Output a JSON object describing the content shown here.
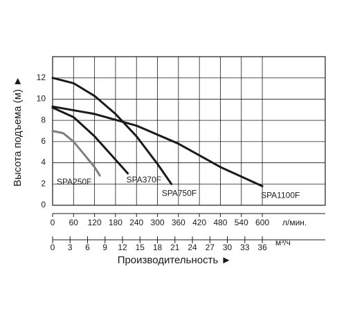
{
  "chart_data": {
    "type": "line",
    "ylabel": "Высота подъема (м) ►",
    "xlabel": "Производительность ►",
    "xunit": "л/мин.",
    "x2unit": "м³/ч",
    "xlim": [
      0,
      780
    ],
    "xticks": [
      0,
      60,
      120,
      180,
      240,
      300,
      360,
      420,
      480,
      540,
      600
    ],
    "x2lim": [
      0,
      46.8
    ],
    "x2ticks": [
      0,
      3,
      6,
      9,
      12,
      15,
      18,
      21,
      24,
      27,
      30,
      33,
      36
    ],
    "ylim": [
      0,
      14
    ],
    "yticks": [
      0,
      2,
      4,
      6,
      8,
      10,
      12
    ],
    "grid": true,
    "series": [
      {
        "name": "SPA250F",
        "color": "#7f7f7f",
        "x": [
          0,
          30,
          60,
          90,
          120,
          135
        ],
        "values": [
          7,
          6.8,
          6,
          4.8,
          3.6,
          2.8
        ]
      },
      {
        "name": "SPA370F",
        "color": "#1a1a1a",
        "x": [
          0,
          60,
          120,
          180,
          215
        ],
        "values": [
          9.2,
          8.3,
          6.5,
          4.3,
          3
        ]
      },
      {
        "name": "SPA750F",
        "color": "#1a1a1a",
        "x": [
          0,
          60,
          120,
          180,
          240,
          300,
          340
        ],
        "values": [
          12,
          11.5,
          10.3,
          8.6,
          6.5,
          3.9,
          2
        ]
      },
      {
        "name": "SPA1100F",
        "color": "#1a1a1a",
        "x": [
          0,
          120,
          240,
          360,
          480,
          600
        ],
        "values": [
          9.3,
          8.6,
          7.5,
          5.8,
          3.6,
          1.8
        ]
      }
    ]
  }
}
